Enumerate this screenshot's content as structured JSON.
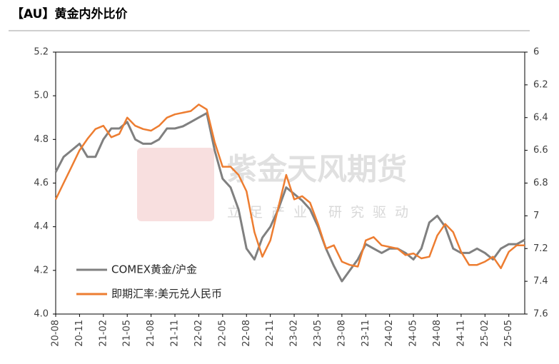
{
  "chart_data": {
    "type": "line",
    "title": "【AU】黄金内外比价",
    "watermark": "紫金天风期货",
    "watermark_subtitle": "立足产业 研究驱动",
    "categories": [
      "20-08",
      null,
      null,
      "20-11",
      null,
      null,
      "21-02",
      null,
      null,
      "21-05",
      null,
      null,
      "21-08",
      null,
      null,
      "21-11",
      null,
      null,
      "22-02",
      null,
      null,
      "22-05",
      null,
      null,
      "22-08",
      null,
      null,
      "22-11",
      null,
      null,
      "23-02",
      null,
      null,
      "23-05",
      null,
      null,
      "23-08",
      null,
      null,
      "23-11",
      null,
      null,
      "24-02",
      null,
      null,
      "24-05",
      null,
      null,
      "24-08",
      null,
      null,
      "24-11",
      null,
      null,
      "25-02",
      null,
      null,
      "25-05",
      null,
      null
    ],
    "series": [
      {
        "name": "COMEX黄金/沪金",
        "color": "#808080",
        "axis": "y",
        "values": [
          4.65,
          4.72,
          4.75,
          4.78,
          4.72,
          4.72,
          4.8,
          4.85,
          4.85,
          4.88,
          4.8,
          4.78,
          4.78,
          4.8,
          4.85,
          4.85,
          4.86,
          4.88,
          4.9,
          4.92,
          4.75,
          4.62,
          4.58,
          4.48,
          4.3,
          4.25,
          4.35,
          4.4,
          4.48,
          4.58,
          4.55,
          4.52,
          4.48,
          4.4,
          4.3,
          4.22,
          4.15,
          4.2,
          4.25,
          4.32,
          4.3,
          4.28,
          4.3,
          4.3,
          4.28,
          4.25,
          4.3,
          4.42,
          4.45,
          4.4,
          4.3,
          4.28,
          4.28,
          4.3,
          4.28,
          4.25,
          4.3,
          4.32,
          4.32,
          4.34
        ]
      },
      {
        "name": "即期汇率:美元兑人民币",
        "color": "#ed7d31",
        "axis": "y2",
        "values": [
          6.9,
          6.8,
          6.7,
          6.6,
          6.53,
          6.47,
          6.45,
          6.52,
          6.5,
          6.4,
          6.45,
          6.47,
          6.48,
          6.45,
          6.4,
          6.38,
          6.37,
          6.36,
          6.32,
          6.35,
          6.55,
          6.7,
          6.7,
          6.75,
          6.85,
          7.1,
          7.25,
          7.15,
          6.95,
          6.75,
          6.9,
          6.88,
          6.92,
          7.05,
          7.2,
          7.18,
          7.28,
          7.3,
          7.31,
          7.15,
          7.13,
          7.18,
          7.19,
          7.2,
          7.24,
          7.23,
          7.26,
          7.25,
          7.12,
          7.05,
          7.1,
          7.22,
          7.3,
          7.3,
          7.28,
          7.25,
          7.32,
          7.22,
          7.18,
          7.18
        ]
      }
    ],
    "ylim": [
      4.0,
      5.2
    ],
    "yticks": [
      {
        "value": 4.0,
        "label": "4.0"
      },
      4.2,
      4.4,
      4.6,
      4.8,
      {
        "value": 5.0,
        "label": "5.0"
      },
      5.2
    ],
    "y2lim": [
      6,
      7.6
    ],
    "y2_inverted": true,
    "y2ticks": [
      6,
      6.2,
      6.4,
      6.6,
      6.8,
      7,
      7.2,
      7.4,
      7.6
    ],
    "legend": "lower-left",
    "grid": false
  }
}
